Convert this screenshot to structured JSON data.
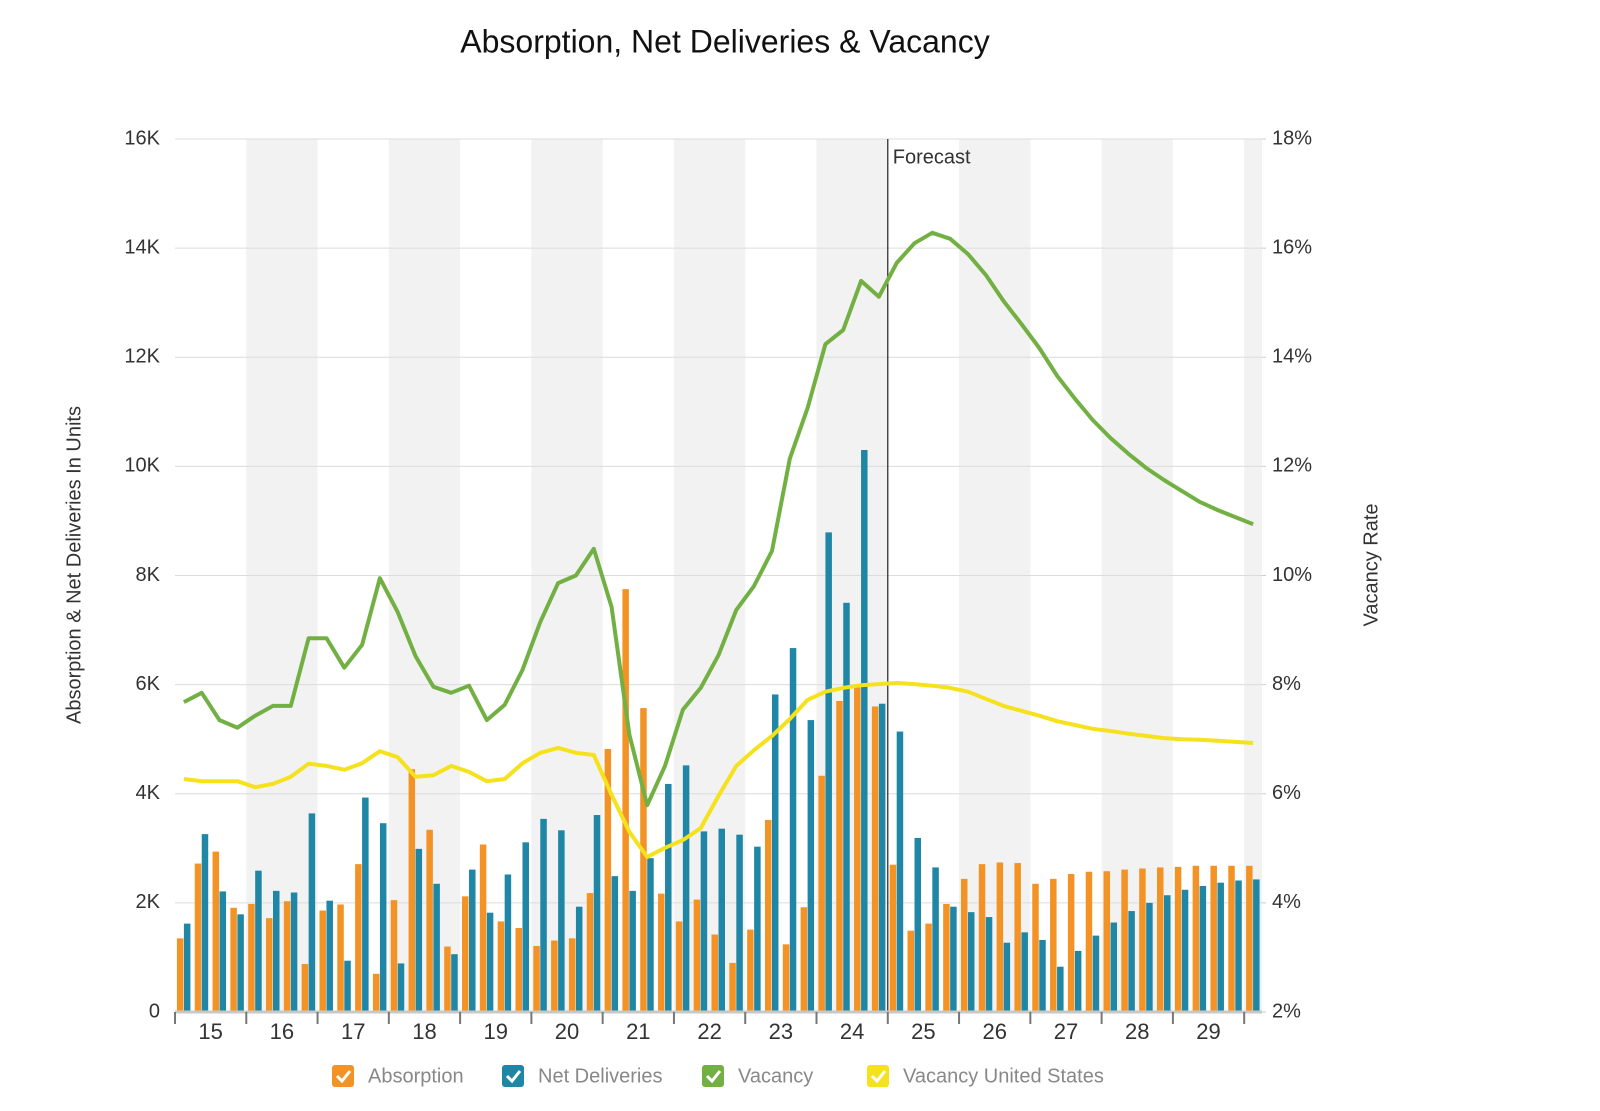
{
  "chart_data": {
    "type": "bar-line",
    "title": "Absorption, Net Deliveries & Vacancy",
    "y_label": "Absorption & Net Deliveries In Units",
    "y2_label": "Vacancy Rate",
    "annotation": {
      "text": "Forecast",
      "category": "25"
    },
    "categories": [
      "15",
      null,
      null,
      null,
      "16",
      null,
      null,
      null,
      "17",
      null,
      null,
      null,
      "18",
      null,
      null,
      null,
      "19",
      null,
      null,
      null,
      "20",
      null,
      null,
      null,
      "21",
      null,
      null,
      null,
      "22",
      null,
      null,
      null,
      "23",
      null,
      null,
      null,
      "24",
      null,
      null,
      null,
      "25",
      null,
      null,
      null,
      "26",
      null,
      null,
      null,
      "27",
      null,
      null,
      null,
      "28",
      null,
      null,
      null,
      "29",
      null,
      null,
      null,
      null
    ],
    "ylim": [
      0,
      16000
    ],
    "yticks": [
      0,
      {
        "value": 2000,
        "label": "2K"
      },
      {
        "value": 4000,
        "label": "4K"
      },
      {
        "value": 6000,
        "label": "6K"
      },
      {
        "value": 8000,
        "label": "8K"
      },
      {
        "value": 10000,
        "label": "10K"
      },
      {
        "value": 12000,
        "label": "12K"
      },
      {
        "value": 14000,
        "label": "14K"
      },
      {
        "value": 16000,
        "label": "16K"
      }
    ],
    "y2lim": [
      2,
      18
    ],
    "y2ticks": [
      {
        "value": 2,
        "label": "2%"
      },
      {
        "value": 4,
        "label": "4%"
      },
      {
        "value": 6,
        "label": "6%"
      },
      {
        "value": 8,
        "label": "8%"
      },
      {
        "value": 10,
        "label": "10%"
      },
      {
        "value": 12,
        "label": "12%"
      },
      {
        "value": 14,
        "label": "14%"
      },
      {
        "value": 16,
        "label": "16%"
      },
      {
        "value": 18,
        "label": "18%"
      }
    ],
    "grid": true,
    "legend": "bottom",
    "series": [
      {
        "name": "Absorption",
        "type": "bar",
        "color": "#f39325",
        "values": [
          1350,
          2720,
          2940,
          1910,
          1980,
          1720,
          2030,
          880,
          1860,
          1970,
          2710,
          700,
          2050,
          4450,
          3340,
          1200,
          2120,
          3070,
          1660,
          1540,
          1210,
          1310,
          1350,
          2180,
          4820,
          7750,
          5570,
          2170,
          1660,
          2060,
          1420,
          900,
          1510,
          3520,
          1240,
          1920,
          4330,
          5700,
          5950,
          5600,
          2700,
          1490,
          1620,
          1980,
          2440,
          2710,
          2740,
          2730,
          2350,
          2440,
          2530,
          2570,
          2580,
          2610,
          2630,
          2650,
          2660,
          2680,
          2680,
          2680,
          2680
        ]
      },
      {
        "name": "Net Deliveries",
        "type": "bar",
        "color": "#1f86a5",
        "values": [
          1620,
          3260,
          2210,
          1790,
          2590,
          2220,
          2190,
          3640,
          2040,
          940,
          3930,
          3460,
          890,
          2990,
          2350,
          1060,
          2610,
          1820,
          2520,
          3110,
          3540,
          3330,
          1930,
          3610,
          2490,
          2220,
          2820,
          4180,
          4520,
          3310,
          3360,
          3250,
          3030,
          5820,
          6670,
          5350,
          8790,
          7500,
          10300,
          5650,
          5140,
          3190,
          2650,
          1930,
          1830,
          1740,
          1270,
          1460,
          1320,
          830,
          1120,
          1400,
          1640,
          1850,
          2000,
          2140,
          2240,
          2310,
          2370,
          2410,
          2430
        ]
      },
      {
        "name": "Vacancy",
        "type": "line",
        "axis": "y2",
        "color": "#72b043",
        "values": [
          7.68,
          7.85,
          7.35,
          7.21,
          7.43,
          7.61,
          7.61,
          8.85,
          8.85,
          8.31,
          8.73,
          9.95,
          9.33,
          8.52,
          7.96,
          7.85,
          7.98,
          7.35,
          7.63,
          8.27,
          9.15,
          9.86,
          10.0,
          10.49,
          9.42,
          7.08,
          5.79,
          6.51,
          7.54,
          7.94,
          8.54,
          9.37,
          9.81,
          10.45,
          12.14,
          13.07,
          14.24,
          14.5,
          15.4,
          15.11,
          15.73,
          16.09,
          16.28,
          16.17,
          15.89,
          15.51,
          15.03,
          14.61,
          14.17,
          13.66,
          13.24,
          12.85,
          12.52,
          12.23,
          11.97,
          11.75,
          11.55,
          11.35,
          11.2,
          11.07,
          10.94
        ]
      },
      {
        "name": "Vacancy United States",
        "type": "line",
        "axis": "y2",
        "color": "#f5e11c",
        "values": [
          6.27,
          6.23,
          6.23,
          6.23,
          6.12,
          6.18,
          6.31,
          6.55,
          6.51,
          6.44,
          6.56,
          6.78,
          6.67,
          6.31,
          6.34,
          6.51,
          6.4,
          6.23,
          6.27,
          6.56,
          6.75,
          6.84,
          6.75,
          6.71,
          5.98,
          5.3,
          4.84,
          5.01,
          5.15,
          5.37,
          5.96,
          6.51,
          6.8,
          7.06,
          7.37,
          7.72,
          7.87,
          7.94,
          7.99,
          8.01,
          8.03,
          8.01,
          7.98,
          7.94,
          7.87,
          7.74,
          7.61,
          7.52,
          7.43,
          7.33,
          7.26,
          7.19,
          7.15,
          7.1,
          7.06,
          7.02,
          7.0,
          6.99,
          6.97,
          6.95,
          6.93
        ]
      }
    ]
  }
}
